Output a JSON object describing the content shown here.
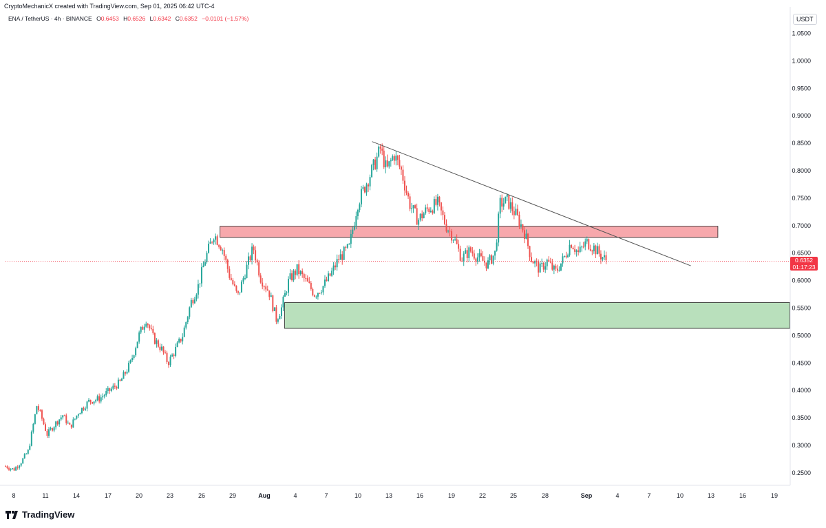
{
  "header": {
    "credit": "CryptoMechanicX created with TradingView.com, Sep 01, 2025 06:42 UTC-4",
    "symbol": "ENA / TetherUS · 4h · BINANCE",
    "open_label": "O",
    "open": "0.6453",
    "high_label": "H",
    "high": "0.6526",
    "low_label": "L",
    "low": "0.6342",
    "close_label": "C",
    "close": "0.6352",
    "change": "−0.0101 (−1.57%)"
  },
  "axis": {
    "unit": "USDT"
  },
  "price_tag": {
    "price": "0.6352",
    "countdown": "01:17:23"
  },
  "branding": {
    "name": "TradingView"
  },
  "colors": {
    "up": "#26a69a",
    "down": "#ef5350",
    "resistance_zone": "#f7a8ac",
    "support_zone": "#b9e0bc",
    "trendline": "#555555",
    "price_line": "#f23645"
  },
  "chart_data": {
    "type": "candlestick",
    "interval": "4h",
    "ylim": [
      0.22,
      1.07
    ],
    "y_ticks": [
      "1.0500",
      "1.0000",
      "0.9500",
      "0.9000",
      "0.8500",
      "0.8000",
      "0.7500",
      "0.7000",
      "0.6500",
      "0.6000",
      "0.5500",
      "0.5000",
      "0.4500",
      "0.4000",
      "0.3500",
      "0.3000",
      "0.2500"
    ],
    "x_ticks": [
      "8",
      "11",
      "14",
      "17",
      "20",
      "23",
      "26",
      "29",
      "Aug",
      "4",
      "7",
      "10",
      "13",
      "16",
      "19",
      "22",
      "25",
      "28",
      "Sep",
      "4",
      "7",
      "10",
      "13",
      "16",
      "19"
    ],
    "close_series": [
      {
        "d": 0.0,
        "c": 0.262
      },
      {
        "d": 0.8,
        "c": 0.256
      },
      {
        "d": 1.5,
        "c": 0.27
      },
      {
        "d": 2.2,
        "c": 0.29
      },
      {
        "d": 3.0,
        "c": 0.372
      },
      {
        "d": 3.3,
        "c": 0.36
      },
      {
        "d": 4.0,
        "c": 0.32
      },
      {
        "d": 4.8,
        "c": 0.34
      },
      {
        "d": 5.5,
        "c": 0.355
      },
      {
        "d": 6.2,
        "c": 0.333
      },
      {
        "d": 7.0,
        "c": 0.36
      },
      {
        "d": 8.0,
        "c": 0.38
      },
      {
        "d": 9.0,
        "c": 0.385
      },
      {
        "d": 10.0,
        "c": 0.4
      },
      {
        "d": 11.0,
        "c": 0.415
      },
      {
        "d": 12.0,
        "c": 0.45
      },
      {
        "d": 12.8,
        "c": 0.5
      },
      {
        "d": 13.5,
        "c": 0.53
      },
      {
        "d": 14.2,
        "c": 0.495
      },
      {
        "d": 15.0,
        "c": 0.475
      },
      {
        "d": 15.6,
        "c": 0.45
      },
      {
        "d": 16.2,
        "c": 0.47
      },
      {
        "d": 17.0,
        "c": 0.5
      },
      {
        "d": 17.8,
        "c": 0.56
      },
      {
        "d": 18.5,
        "c": 0.59
      },
      {
        "d": 19.2,
        "c": 0.64
      },
      {
        "d": 20.0,
        "c": 0.685
      },
      {
        "d": 20.8,
        "c": 0.66
      },
      {
        "d": 21.5,
        "c": 0.61
      },
      {
        "d": 22.3,
        "c": 0.57
      },
      {
        "d": 23.0,
        "c": 0.615
      },
      {
        "d": 23.8,
        "c": 0.66
      },
      {
        "d": 24.5,
        "c": 0.605
      },
      {
        "d": 25.3,
        "c": 0.58
      },
      {
        "d": 26.0,
        "c": 0.53
      },
      {
        "d": 26.5,
        "c": 0.55
      },
      {
        "d": 27.2,
        "c": 0.6
      },
      {
        "d": 28.0,
        "c": 0.62
      },
      {
        "d": 28.8,
        "c": 0.6
      },
      {
        "d": 29.7,
        "c": 0.575
      },
      {
        "d": 30.5,
        "c": 0.59
      },
      {
        "d": 31.2,
        "c": 0.61
      },
      {
        "d": 32.0,
        "c": 0.64
      },
      {
        "d": 33.0,
        "c": 0.66
      },
      {
        "d": 33.8,
        "c": 0.74
      },
      {
        "d": 34.6,
        "c": 0.775
      },
      {
        "d": 35.4,
        "c": 0.81
      },
      {
        "d": 36.0,
        "c": 0.84
      },
      {
        "d": 36.6,
        "c": 0.8
      },
      {
        "d": 37.3,
        "c": 0.83
      },
      {
        "d": 38.0,
        "c": 0.8
      },
      {
        "d": 38.8,
        "c": 0.74
      },
      {
        "d": 39.6,
        "c": 0.71
      },
      {
        "d": 40.5,
        "c": 0.73
      },
      {
        "d": 41.5,
        "c": 0.74
      },
      {
        "d": 42.3,
        "c": 0.7
      },
      {
        "d": 43.0,
        "c": 0.68
      },
      {
        "d": 43.8,
        "c": 0.64
      },
      {
        "d": 44.6,
        "c": 0.655
      },
      {
        "d": 45.5,
        "c": 0.64
      },
      {
        "d": 46.3,
        "c": 0.63
      },
      {
        "d": 47.0,
        "c": 0.65
      },
      {
        "d": 47.5,
        "c": 0.74
      },
      {
        "d": 48.2,
        "c": 0.745
      },
      {
        "d": 49.0,
        "c": 0.72
      },
      {
        "d": 49.8,
        "c": 0.69
      },
      {
        "d": 50.5,
        "c": 0.64
      },
      {
        "d": 51.3,
        "c": 0.62
      },
      {
        "d": 52.0,
        "c": 0.635
      },
      {
        "d": 52.8,
        "c": 0.615
      },
      {
        "d": 53.6,
        "c": 0.64
      },
      {
        "d": 54.3,
        "c": 0.67
      },
      {
        "d": 55.0,
        "c": 0.65
      },
      {
        "d": 55.8,
        "c": 0.67
      },
      {
        "d": 56.5,
        "c": 0.66
      },
      {
        "d": 57.2,
        "c": 0.645
      },
      {
        "d": 57.8,
        "c": 0.635
      }
    ],
    "zones": [
      {
        "name": "resistance",
        "from_day": 20.6,
        "to_day": 68.4,
        "y_low": 0.6785,
        "y_high": 0.699
      },
      {
        "name": "support",
        "from_day": 26.8,
        "to_day": 75.3,
        "y_low": 0.513,
        "y_high": 0.56
      }
    ],
    "trendline": {
      "from": {
        "d": 35.2,
        "y": 0.853
      },
      "to": {
        "d": 65.8,
        "y": 0.627
      }
    },
    "last_price": 0.6352,
    "grid": false
  }
}
